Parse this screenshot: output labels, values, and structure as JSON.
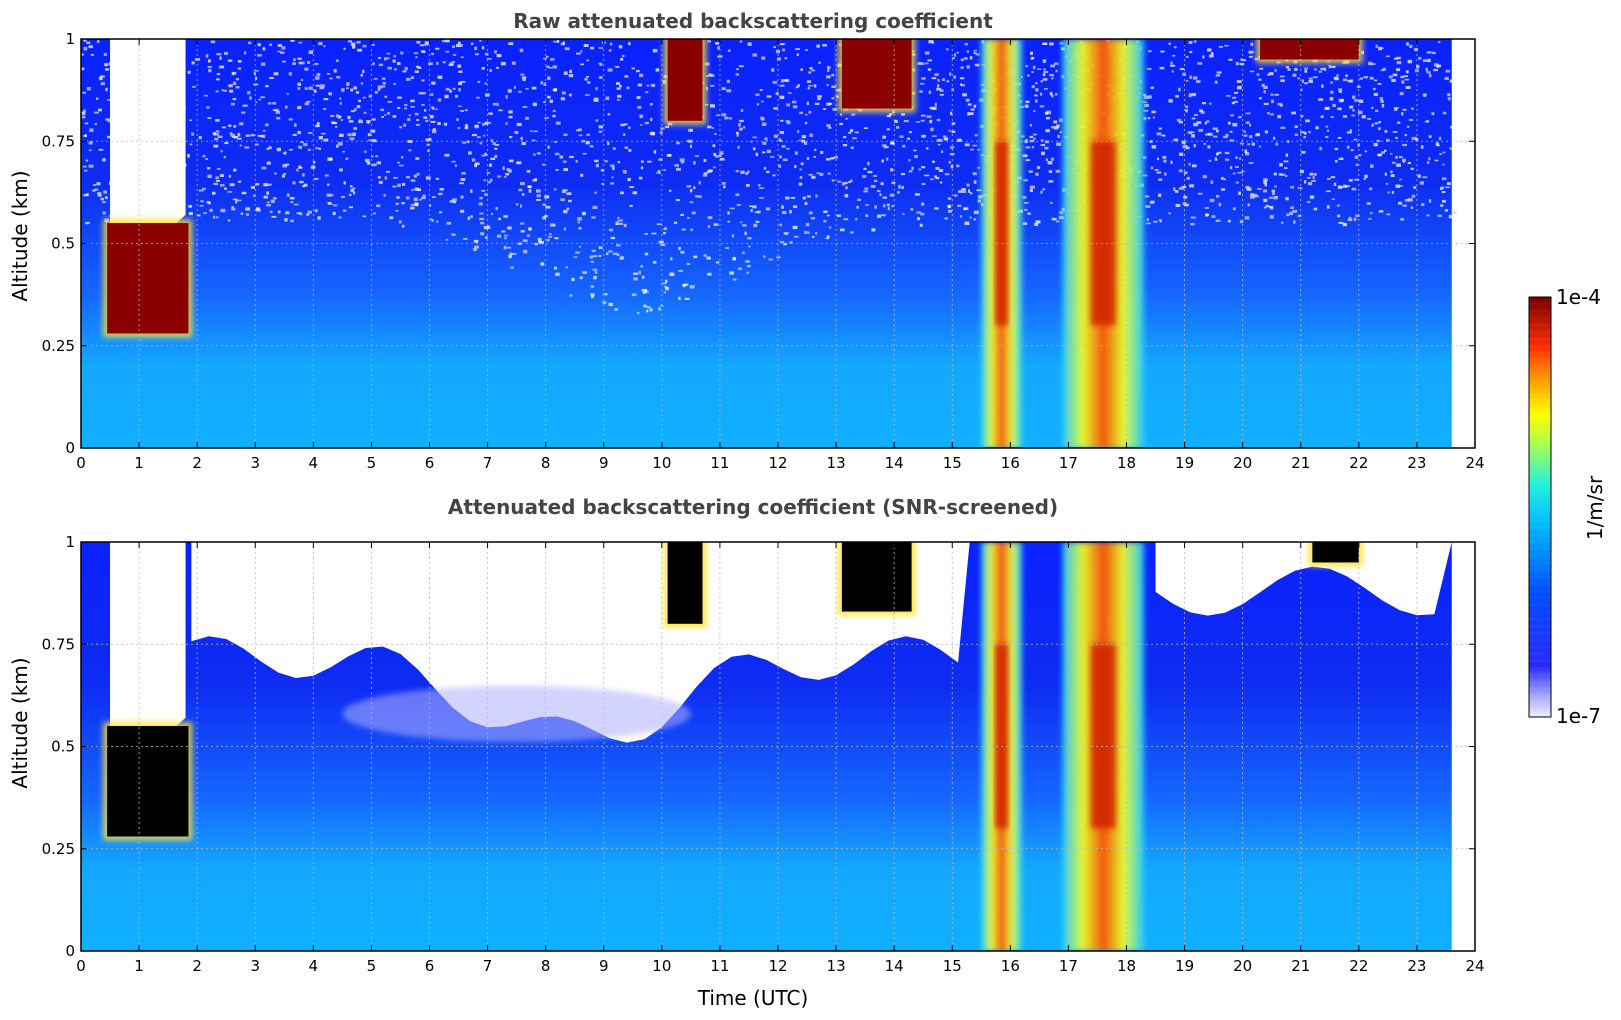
{
  "chart_data": [
    {
      "type": "heatmap",
      "title": "Raw attenuated backscattering coefficient",
      "xlabel": "",
      "ylabel": "Altitude (km)",
      "xlim": [
        0,
        24
      ],
      "ylim": [
        0,
        1
      ],
      "x_ticks": [
        "0",
        "1",
        "2",
        "3",
        "4",
        "5",
        "6",
        "7",
        "8",
        "9",
        "10",
        "11",
        "12",
        "13",
        "14",
        "15",
        "16",
        "17",
        "18",
        "19",
        "20",
        "21",
        "22",
        "23",
        "24"
      ],
      "y_ticks": [
        "0",
        "0.25",
        "0.5",
        "0.75",
        "1"
      ],
      "grid": true,
      "data_end_x": 23.6,
      "features": [
        {
          "kind": "cloud_base",
          "x": [
            0.45,
            1.85
          ],
          "y": [
            0.28,
            0.55
          ],
          "level": "high"
        },
        {
          "kind": "cloud",
          "x": [
            10.1,
            10.7
          ],
          "y": [
            0.8,
            1.0
          ],
          "level": "high"
        },
        {
          "kind": "cloud",
          "x": [
            13.1,
            14.3
          ],
          "y": [
            0.83,
            1.0
          ],
          "level": "high"
        },
        {
          "kind": "precipitation_band",
          "x": [
            15.5,
            16.2
          ],
          "y": [
            0.0,
            1.0
          ],
          "level": "high"
        },
        {
          "kind": "precipitation_band",
          "x": [
            16.9,
            18.3
          ],
          "y": [
            0.0,
            1.0
          ],
          "level": "high"
        },
        {
          "kind": "cloud",
          "x": [
            20.3,
            22.0
          ],
          "y": [
            0.95,
            1.0
          ],
          "level": "high"
        }
      ]
    },
    {
      "type": "heatmap",
      "title": "Attenuated backscattering coefficient (SNR-screened)",
      "xlabel": "Time (UTC)",
      "ylabel": "Altitude (km)",
      "xlim": [
        0,
        24
      ],
      "ylim": [
        0,
        1
      ],
      "x_ticks": [
        "0",
        "1",
        "2",
        "3",
        "4",
        "5",
        "6",
        "7",
        "8",
        "9",
        "10",
        "11",
        "12",
        "13",
        "14",
        "15",
        "16",
        "17",
        "18",
        "19",
        "20",
        "21",
        "22",
        "23",
        "24"
      ],
      "y_ticks": [
        "0",
        "0.25",
        "0.5",
        "0.75",
        "1"
      ],
      "grid": true,
      "data_end_x": 23.6,
      "features": [
        {
          "kind": "cloud_base",
          "x": [
            0.45,
            1.85
          ],
          "y": [
            0.28,
            0.55
          ],
          "level": "saturated"
        },
        {
          "kind": "cloud",
          "x": [
            10.1,
            10.7
          ],
          "y": [
            0.8,
            1.0
          ],
          "level": "saturated"
        },
        {
          "kind": "cloud",
          "x": [
            13.1,
            14.3
          ],
          "y": [
            0.83,
            1.0
          ],
          "level": "saturated"
        },
        {
          "kind": "precipitation_band",
          "x": [
            15.5,
            16.2
          ],
          "y": [
            0.0,
            1.0
          ],
          "level": "high"
        },
        {
          "kind": "precipitation_band",
          "x": [
            16.9,
            18.3
          ],
          "y": [
            0.0,
            1.0
          ],
          "level": "high"
        },
        {
          "kind": "cloud",
          "x": [
            21.2,
            22.0
          ],
          "y": [
            0.95,
            1.0
          ],
          "level": "saturated"
        }
      ]
    }
  ],
  "colorbar": {
    "label": "1/m/sr",
    "max_label": "1e-4",
    "min_label": "1e-7",
    "colormap": "jet",
    "scale": "log",
    "range": [
      1e-07,
      0.0001
    ]
  }
}
